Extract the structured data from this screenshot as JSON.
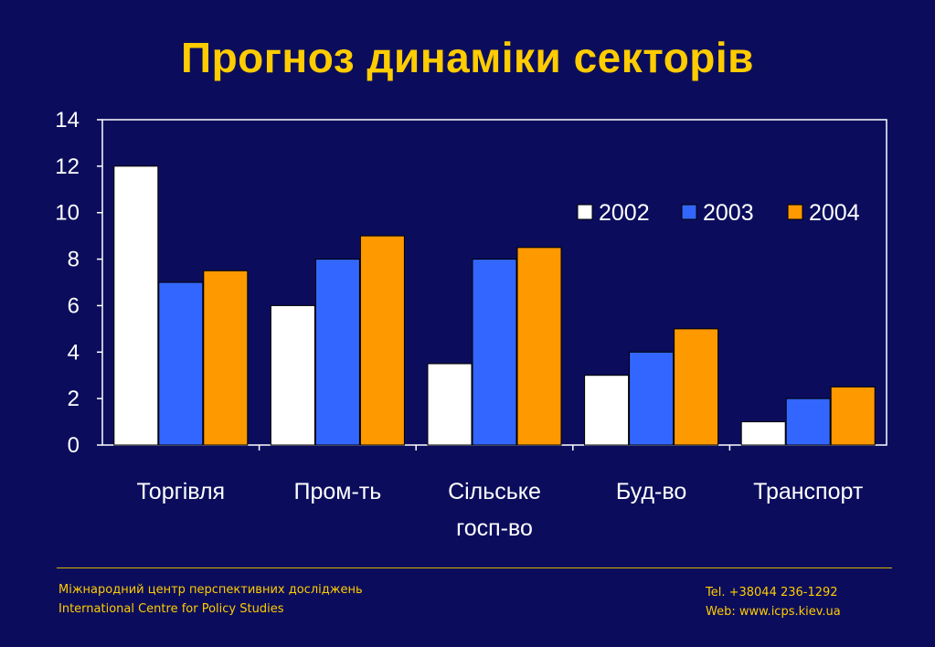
{
  "slide": {
    "title": "Прогноз динаміки секторів"
  },
  "chart_data": {
    "type": "bar",
    "title": "Прогноз динаміки секторів",
    "categories": [
      [
        "Торгівля"
      ],
      [
        "Пром-ть"
      ],
      [
        "Сільське",
        "госп-во"
      ],
      [
        "Буд-во"
      ],
      [
        "Транспорт"
      ]
    ],
    "series": [
      {
        "name": "2002",
        "values": [
          12,
          6,
          3.5,
          3,
          1
        ],
        "color": "#ffffff"
      },
      {
        "name": "2003",
        "values": [
          7,
          8,
          8,
          4,
          2
        ],
        "color": "#3366ff"
      },
      {
        "name": "2004",
        "values": [
          7.5,
          9,
          8.5,
          5,
          2.5
        ],
        "color": "#ff9900"
      }
    ],
    "ylim": [
      0,
      14
    ],
    "yticks": [
      0,
      2,
      4,
      6,
      8,
      10,
      12,
      14
    ],
    "xlabel": "",
    "ylabel": "",
    "grid": false,
    "legend": "top-right"
  },
  "footer": {
    "org_ua": "Міжнародний центр перспективних досліджень",
    "org_en": "International Centre for Policy Studies",
    "tel": "Tel. +38044 236-1292",
    "web": "Web: www.icps.kiev.ua"
  },
  "colors": {
    "background": "#0b0d5c",
    "title": "#ffcc00",
    "axis": "#ffffff"
  }
}
